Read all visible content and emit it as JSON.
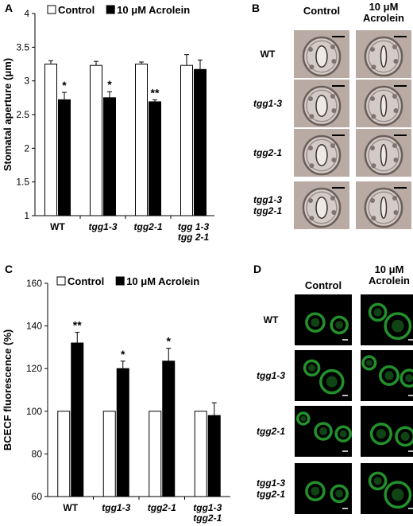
{
  "colors": {
    "control": "#ffffff",
    "acrolein": "#000000",
    "micrograph_b_bg": "#b9aaa4",
    "micrograph_d_bg": "#000000",
    "fluor": "#2fc23a"
  },
  "panels": {
    "a": {
      "letter": "A"
    },
    "b": {
      "letter": "B"
    },
    "c": {
      "letter": "C"
    },
    "d": {
      "letter": "D"
    }
  },
  "chart_data": [
    {
      "type": "bar",
      "ylabel": "Stomatal aperture (μm)",
      "xlabel": "",
      "ylim": [
        1,
        4
      ],
      "yticks": [
        "1",
        "1.5",
        "2",
        "2.5",
        "3",
        "3.5",
        "4"
      ],
      "categories": [
        "WT",
        "tgg1-3",
        "tgg2-1",
        "tgg 1-3\ntgg 2-1"
      ],
      "series": [
        {
          "name": "Control",
          "values": [
            3.25,
            3.23,
            3.25,
            3.23
          ],
          "errors": [
            0.05,
            0.06,
            0.03,
            0.16
          ]
        },
        {
          "name": "10 μM Acrolein",
          "values": [
            2.72,
            2.75,
            2.69,
            3.17
          ],
          "errors": [
            0.11,
            0.09,
            0.03,
            0.14
          ]
        }
      ],
      "significance": [
        "*",
        "*",
        "**",
        ""
      ],
      "legend_position": "top"
    },
    {
      "type": "bar",
      "ylabel": "BCECF fluorescence (%)",
      "xlabel": "",
      "ylim": [
        60,
        160
      ],
      "yticks": [
        "60",
        "80",
        "100",
        "120",
        "140",
        "160"
      ],
      "categories": [
        "WT",
        "tgg1-3",
        "tgg2-1",
        "tgg1-3\ntgg2-1"
      ],
      "series": [
        {
          "name": "Control",
          "values": [
            100,
            100,
            100,
            100
          ],
          "errors": [
            0,
            0,
            0,
            0
          ]
        },
        {
          "name": "10 μM Acrolein",
          "values": [
            132,
            120,
            123.5,
            98
          ],
          "errors": [
            5,
            3.5,
            6,
            6
          ]
        }
      ],
      "significance": [
        "**",
        "*",
        "*",
        ""
      ],
      "legend_position": "top"
    }
  ],
  "micrographs_b": {
    "col_headers": [
      "Control",
      "10 μM\nAcrolein"
    ],
    "row_labels": [
      "WT",
      "tgg1-3",
      "tgg2-1",
      "tgg1-3\ntgg2-1"
    ]
  },
  "micrographs_d": {
    "col_headers": [
      "Control",
      "10 μM\nAcrolein"
    ],
    "row_labels": [
      "WT",
      "tgg1-3",
      "tgg2-1",
      "tgg1-3\ntgg2-1"
    ]
  }
}
